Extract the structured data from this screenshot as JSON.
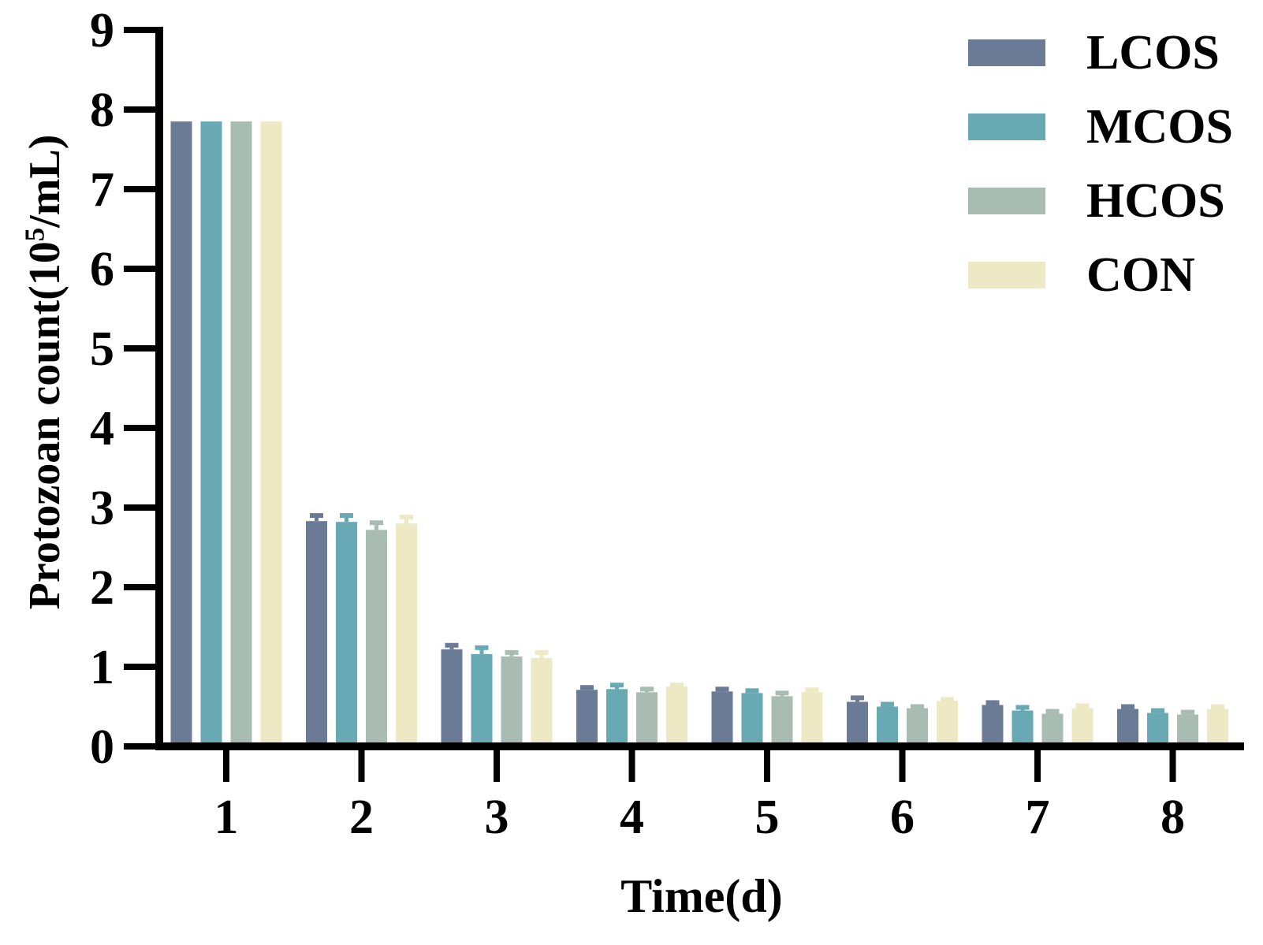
{
  "chart_data": {
    "type": "bar",
    "title": "",
    "xlabel": "Time(d)",
    "ylabel": "Protozoan count(10^5/mL)",
    "ylabel_parts": {
      "prefix": "Protozoan count(10",
      "sup": "5",
      "suffix": "/mL)"
    },
    "categories": [
      "1",
      "2",
      "3",
      "4",
      "5",
      "6",
      "7",
      "8"
    ],
    "yticks": [
      0,
      1,
      2,
      3,
      4,
      5,
      6,
      7,
      8,
      9
    ],
    "ylim": [
      0,
      9
    ],
    "grid": false,
    "legend_position": "top-right",
    "axis_color": "#000000",
    "background_color": "#ffffff",
    "series": [
      {
        "name": "LCOS",
        "color": "#6B7A95",
        "values": [
          7.85,
          2.83,
          1.22,
          0.71,
          0.69,
          0.56,
          0.52,
          0.47
        ],
        "errors": [
          0,
          0.07,
          0.05,
          0.03,
          0.03,
          0.05,
          0.03,
          0.03
        ]
      },
      {
        "name": "MCOS",
        "color": "#69A9B3",
        "values": [
          7.85,
          2.82,
          1.16,
          0.72,
          0.67,
          0.5,
          0.45,
          0.42
        ],
        "errors": [
          0,
          0.08,
          0.08,
          0.05,
          0.03,
          0.03,
          0.04,
          0.03
        ]
      },
      {
        "name": "HCOS",
        "color": "#A9BCB2",
        "values": [
          7.85,
          2.72,
          1.13,
          0.68,
          0.63,
          0.48,
          0.41,
          0.4
        ],
        "errors": [
          0,
          0.09,
          0.05,
          0.04,
          0.04,
          0.02,
          0.03,
          0.03
        ]
      },
      {
        "name": "CON",
        "color": "#ECE9C4",
        "values": [
          7.85,
          2.8,
          1.11,
          0.75,
          0.68,
          0.57,
          0.48,
          0.47
        ],
        "errors": [
          0,
          0.08,
          0.07,
          0.02,
          0.03,
          0.02,
          0.03,
          0.03
        ]
      }
    ]
  }
}
